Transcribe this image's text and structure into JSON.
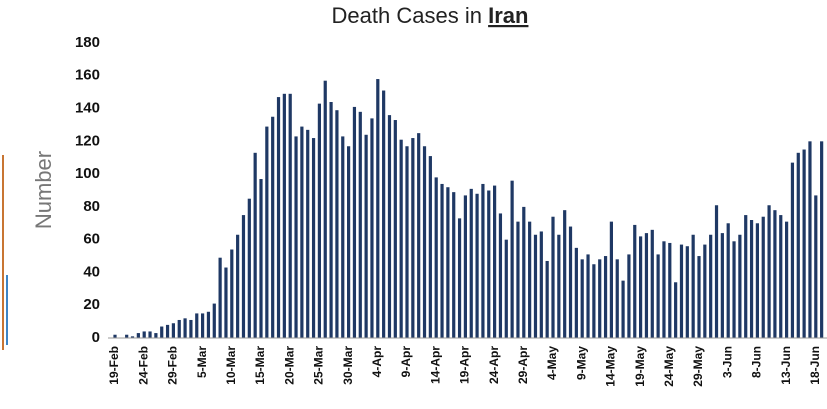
{
  "chart_data": {
    "type": "bar",
    "title": "Death Cases in",
    "title_emphasis": "Iran",
    "y_label": "Number",
    "color": "#1f3864",
    "ylim": [
      0,
      180
    ],
    "yticks": [
      0,
      20,
      40,
      60,
      80,
      100,
      120,
      140,
      160,
      180
    ],
    "categories": [
      "19-Feb",
      null,
      null,
      null,
      null,
      "24-Feb",
      null,
      null,
      null,
      null,
      "29-Feb",
      null,
      null,
      null,
      null,
      "5-Mar",
      null,
      null,
      null,
      null,
      "10-Mar",
      null,
      null,
      null,
      null,
      "15-Mar",
      null,
      null,
      null,
      null,
      "20-Mar",
      null,
      null,
      null,
      null,
      "25-Mar",
      null,
      null,
      null,
      null,
      "30-Mar",
      null,
      null,
      null,
      null,
      "4-Apr",
      null,
      null,
      null,
      null,
      "9-Apr",
      null,
      null,
      null,
      null,
      "14-Apr",
      null,
      null,
      null,
      null,
      "19-Apr",
      null,
      null,
      null,
      null,
      "24-Apr",
      null,
      null,
      null,
      null,
      "29-Apr",
      null,
      null,
      null,
      null,
      "4-May",
      null,
      null,
      null,
      null,
      "9-May",
      null,
      null,
      null,
      null,
      "14-May",
      null,
      null,
      null,
      null,
      "19-May",
      null,
      null,
      null,
      null,
      "24-May",
      null,
      null,
      null,
      null,
      "29-May",
      null,
      null,
      null,
      null,
      "3-Jun",
      null,
      null,
      null,
      null,
      "8-Jun",
      null,
      null,
      null,
      null,
      "13-Jun",
      null,
      null,
      null,
      null,
      "18-Jun",
      null
    ],
    "values": [
      2,
      0,
      2,
      1,
      3,
      4,
      4,
      3,
      7,
      8,
      9,
      11,
      12,
      11,
      15,
      15,
      16,
      21,
      49,
      43,
      54,
      63,
      75,
      85,
      113,
      97,
      129,
      135,
      147,
      149,
      149,
      123,
      129,
      127,
      122,
      143,
      157,
      144,
      139,
      123,
      117,
      141,
      138,
      124,
      134,
      158,
      151,
      136,
      133,
      121,
      117,
      122,
      125,
      117,
      111,
      98,
      94,
      92,
      89,
      73,
      87,
      91,
      88,
      94,
      90,
      93,
      76,
      60,
      96,
      71,
      80,
      71,
      63,
      65,
      47,
      74,
      63,
      78,
      68,
      55,
      48,
      51,
      45,
      48,
      50,
      71,
      48,
      35,
      51,
      69,
      62,
      64,
      66,
      51,
      59,
      58,
      34,
      57,
      56,
      63,
      50,
      57,
      63,
      81,
      64,
      70,
      59,
      63,
      75,
      72,
      70,
      74,
      81,
      78,
      75,
      71,
      107,
      113,
      115,
      120,
      87,
      120
    ]
  }
}
